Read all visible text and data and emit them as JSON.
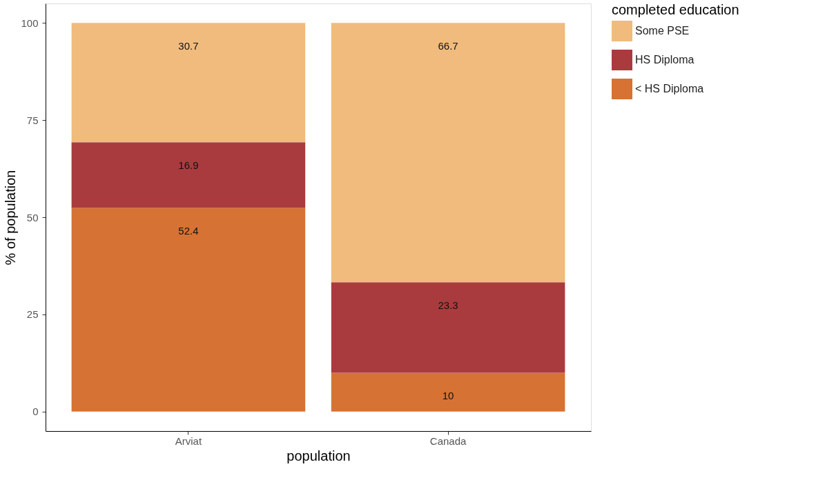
{
  "chart_data": {
    "type": "bar",
    "stacked": true,
    "xlabel": "population",
    "ylabel": "% of population",
    "legend_title": "completed education",
    "legend": "right",
    "grid": false,
    "data_labels": true,
    "categories": [
      "Arviat",
      "Canada"
    ],
    "series": [
      {
        "name": "< HS Diploma",
        "color": "#d57234",
        "values": [
          52.4,
          10
        ]
      },
      {
        "name": "HS Diploma",
        "color": "#a93b3e",
        "values": [
          16.9,
          23.3
        ]
      },
      {
        "name": "Some PSE",
        "color": "#f0bb7c",
        "values": [
          30.7,
          66.7
        ]
      }
    ],
    "ylim": [
      -5,
      105
    ],
    "yticks": [
      0,
      25,
      50,
      75,
      100
    ]
  }
}
